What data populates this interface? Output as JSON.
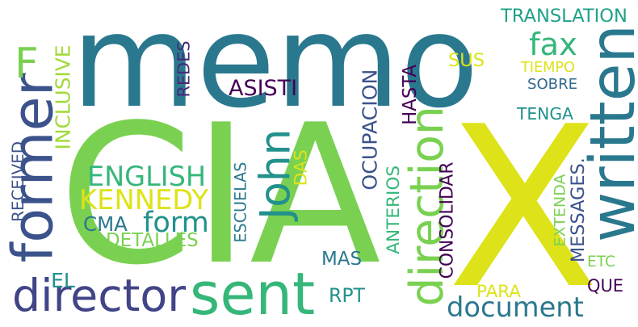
{
  "words": [
    {
      "text": "memo",
      "color": "#2a788e",
      "rot": 0
    },
    {
      "text": "CIA",
      "color": "#7ad151",
      "rot": 0
    },
    {
      "text": "X",
      "color": "#dde318",
      "rot": 0
    },
    {
      "text": "written",
      "color": "#2a788e",
      "rot": -90
    },
    {
      "text": "former",
      "color": "#3b528b",
      "rot": -90
    },
    {
      "text": "sent",
      "color": "#35b779",
      "rot": 0
    },
    {
      "text": "director",
      "color": "#414487",
      "rot": 0
    },
    {
      "text": "direction",
      "color": "#7ad151",
      "rot": -90
    },
    {
      "text": "document",
      "color": "#2a788e",
      "rot": 0
    },
    {
      "text": "John",
      "color": "#21918c",
      "rot": -90
    },
    {
      "text": "KENNEDY",
      "color": "#dde318",
      "rot": 0
    },
    {
      "text": "ENGLISH",
      "color": "#35b779",
      "rot": 0
    },
    {
      "text": "form",
      "color": "#21918c",
      "rot": 0
    },
    {
      "text": "fax",
      "color": "#35b779",
      "rot": 0
    },
    {
      "text": "F",
      "color": "#7ad151",
      "rot": 0
    },
    {
      "text": "CMA",
      "color": "#2a788e",
      "rot": 0
    },
    {
      "text": "DETALLES",
      "color": "#7ad151",
      "rot": 0
    },
    {
      "text": "ASISTI",
      "color": "#440154",
      "rot": 0
    },
    {
      "text": "REDES",
      "color": "#482878",
      "rot": -90
    },
    {
      "text": "INCLUSIVE",
      "color": "#a0da39",
      "rot": -90
    },
    {
      "text": "RECEIVED",
      "color": "#3b528b",
      "rot": -90
    },
    {
      "text": "ESCUELAS",
      "color": "#2a788e",
      "rot": -90
    },
    {
      "text": "DAS",
      "color": "#dde318",
      "rot": -90
    },
    {
      "text": "OCUPACION",
      "color": "#3b528b",
      "rot": -90
    },
    {
      "text": "HASTA",
      "color": "#440154",
      "rot": -90
    },
    {
      "text": "ANTERIOS",
      "color": "#35b779",
      "rot": -90
    },
    {
      "text": "CONSOLIDAR",
      "color": "#440154",
      "rot": -90
    },
    {
      "text": "TRANSLATION",
      "color": "#1fa187",
      "rot": 0
    },
    {
      "text": "SUS",
      "color": "#dde318",
      "rot": 0
    },
    {
      "text": "TIEMPO",
      "color": "#dde318",
      "rot": 0
    },
    {
      "text": "SOBRE",
      "color": "#31688e",
      "rot": 0
    },
    {
      "text": "TENGA",
      "color": "#21918c",
      "rot": 0
    },
    {
      "text": "EXTENDA",
      "color": "#7ad151",
      "rot": -90
    },
    {
      "text": "MESSAGES.",
      "color": "#3b528b",
      "rot": -90
    },
    {
      "text": "ETC",
      "color": "#7ad151",
      "rot": 0
    },
    {
      "text": "QUE",
      "color": "#440154",
      "rot": 0
    },
    {
      "text": "PARA",
      "color": "#dde318",
      "rot": 0
    },
    {
      "text": "MAS",
      "color": "#2a788e",
      "rot": 0
    },
    {
      "text": "RPT",
      "color": "#21918c",
      "rot": 0
    },
    {
      "text": "EL",
      "color": "#21918c",
      "rot": 0
    }
  ]
}
